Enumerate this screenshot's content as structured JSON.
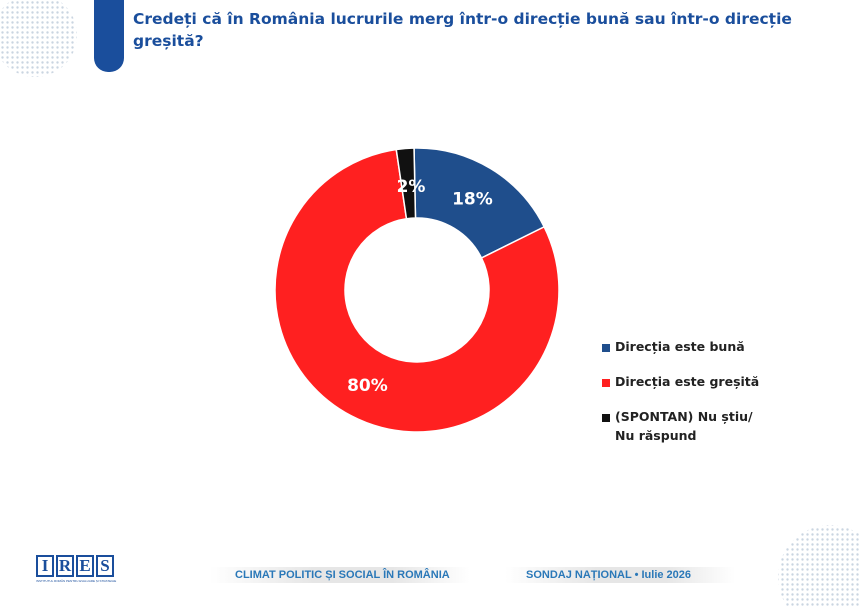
{
  "header": {
    "title": "Credeți că în România  lucrurile merg într-o direcție bună sau într-o direcție greșită?",
    "accent_color": "#1a4e9c"
  },
  "chart_data": {
    "type": "pie",
    "donut": true,
    "title": "Credeți că în România  lucrurile merg într-o direcție bună sau într-o direcție greșită?",
    "categories": [
      "Direcția este bună",
      "Direcția este greșită",
      "(SPONTAN) Nu știu/ Nu răspund"
    ],
    "values": [
      18,
      80,
      2
    ],
    "labels": [
      "18%",
      "80%",
      "2%"
    ],
    "colors": [
      "#1f4e8c",
      "#ff2020",
      "#111111"
    ],
    "label_colors": [
      "#ffffff",
      "#ffffff",
      "#ffffff"
    ],
    "legend_position": "right"
  },
  "legend": {
    "items": [
      {
        "label": "Direcția este bună",
        "color": "#1f4e8c"
      },
      {
        "label": "Direcția este greșită",
        "color": "#ff2020"
      },
      {
        "label": "(SPONTAN) Nu știu/ Nu răspund",
        "color": "#111111"
      }
    ]
  },
  "footer": {
    "logo_letters": [
      "I",
      "R",
      "E",
      "S"
    ],
    "logo_subtitle": "INSTITUTUL ROMÂN PENTRU EVALUARE ȘI STRATEGIE",
    "left_text": "CLIMAT POLITIC ȘI SOCIAL ÎN ROMÂNIA",
    "right_text": "SONDAJ NAȚIONAL • Iulie 2026"
  }
}
